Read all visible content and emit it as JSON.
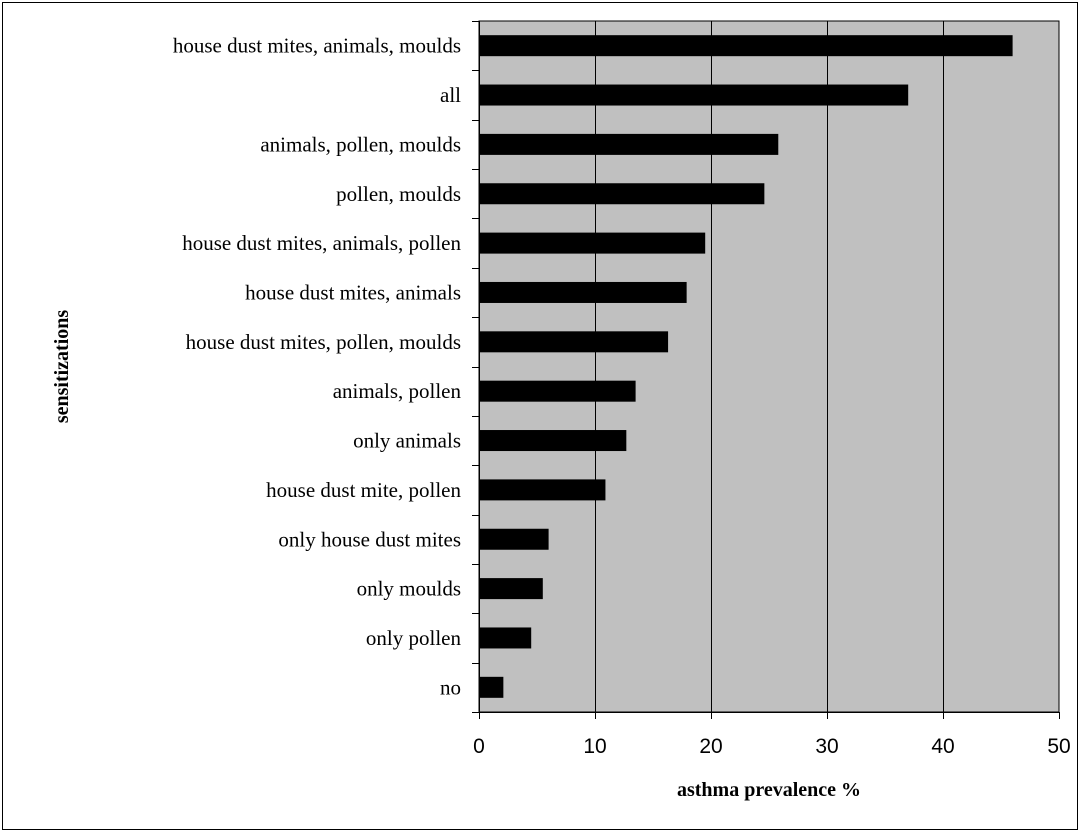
{
  "chart_data": {
    "type": "bar",
    "orientation": "horizontal",
    "categories": [
      "house dust mites, animals, moulds",
      "all",
      "animals, pollen, moulds",
      "pollen, moulds",
      "house dust mites, animals, pollen",
      "house dust mites, animals",
      "house dust mites, pollen, moulds",
      "animals, pollen",
      "only animals",
      "house dust mite, pollen",
      "only house dust mites",
      "only moulds",
      "only pollen",
      "no"
    ],
    "values": [
      46.0,
      37.0,
      25.8,
      24.6,
      19.5,
      17.9,
      16.3,
      13.5,
      12.7,
      10.9,
      6.0,
      5.5,
      4.5,
      2.1
    ],
    "xlabel": "asthma prevalence %",
    "ylabel": "sensitizations",
    "xlim": [
      0,
      50
    ],
    "xticks": [
      "0",
      "10",
      "20",
      "30",
      "40",
      "50"
    ],
    "grid": "vertical",
    "legend": "none",
    "colors": {
      "plot_background": "#c0c0c0",
      "bar": "#000000",
      "gridline": "#000000"
    }
  }
}
